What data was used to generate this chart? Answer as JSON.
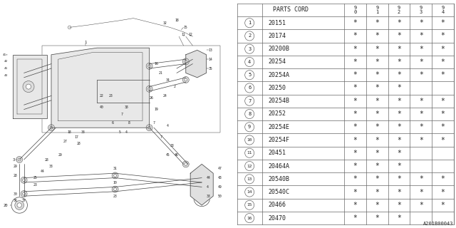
{
  "footer": "A201B00043",
  "bg_color": "#ffffff",
  "table_header": "PARTS CORD",
  "year_labels": [
    "9\n0",
    "9\n1",
    "9\n2",
    "9\n3",
    "9\n4"
  ],
  "parts": [
    {
      "num": 1,
      "code": "20151",
      "years": [
        1,
        1,
        1,
        1,
        1
      ]
    },
    {
      "num": 2,
      "code": "20174",
      "years": [
        1,
        1,
        1,
        1,
        1
      ]
    },
    {
      "num": 3,
      "code": "20200B",
      "years": [
        1,
        1,
        1,
        1,
        1
      ]
    },
    {
      "num": 4,
      "code": "20254",
      "years": [
        1,
        1,
        1,
        1,
        1
      ]
    },
    {
      "num": 5,
      "code": "20254A",
      "years": [
        1,
        1,
        1,
        1,
        1
      ]
    },
    {
      "num": 6,
      "code": "20250",
      "years": [
        1,
        1,
        1,
        0,
        0
      ]
    },
    {
      "num": 7,
      "code": "20254B",
      "years": [
        1,
        1,
        1,
        1,
        1
      ]
    },
    {
      "num": 8,
      "code": "20252",
      "years": [
        1,
        1,
        1,
        1,
        1
      ]
    },
    {
      "num": 9,
      "code": "20254E",
      "years": [
        1,
        1,
        1,
        1,
        1
      ]
    },
    {
      "num": 10,
      "code": "20254F",
      "years": [
        1,
        1,
        1,
        1,
        1
      ]
    },
    {
      "num": 11,
      "code": "20451",
      "years": [
        1,
        1,
        1,
        0,
        0
      ]
    },
    {
      "num": 12,
      "code": "20464A",
      "years": [
        1,
        1,
        1,
        0,
        0
      ]
    },
    {
      "num": 13,
      "code": "20540B",
      "years": [
        1,
        1,
        1,
        1,
        1
      ]
    },
    {
      "num": 14,
      "code": "20540C",
      "years": [
        1,
        1,
        1,
        1,
        1
      ]
    },
    {
      "num": 15,
      "code": "20466",
      "years": [
        1,
        1,
        1,
        1,
        1
      ]
    },
    {
      "num": 16,
      "code": "20470",
      "years": [
        1,
        1,
        1,
        0,
        0
      ]
    }
  ],
  "line_color": "#444444",
  "table_line_color": "#666666",
  "text_color": "#222222",
  "font_size_table": 6.0,
  "font_size_diagram": 4.0
}
